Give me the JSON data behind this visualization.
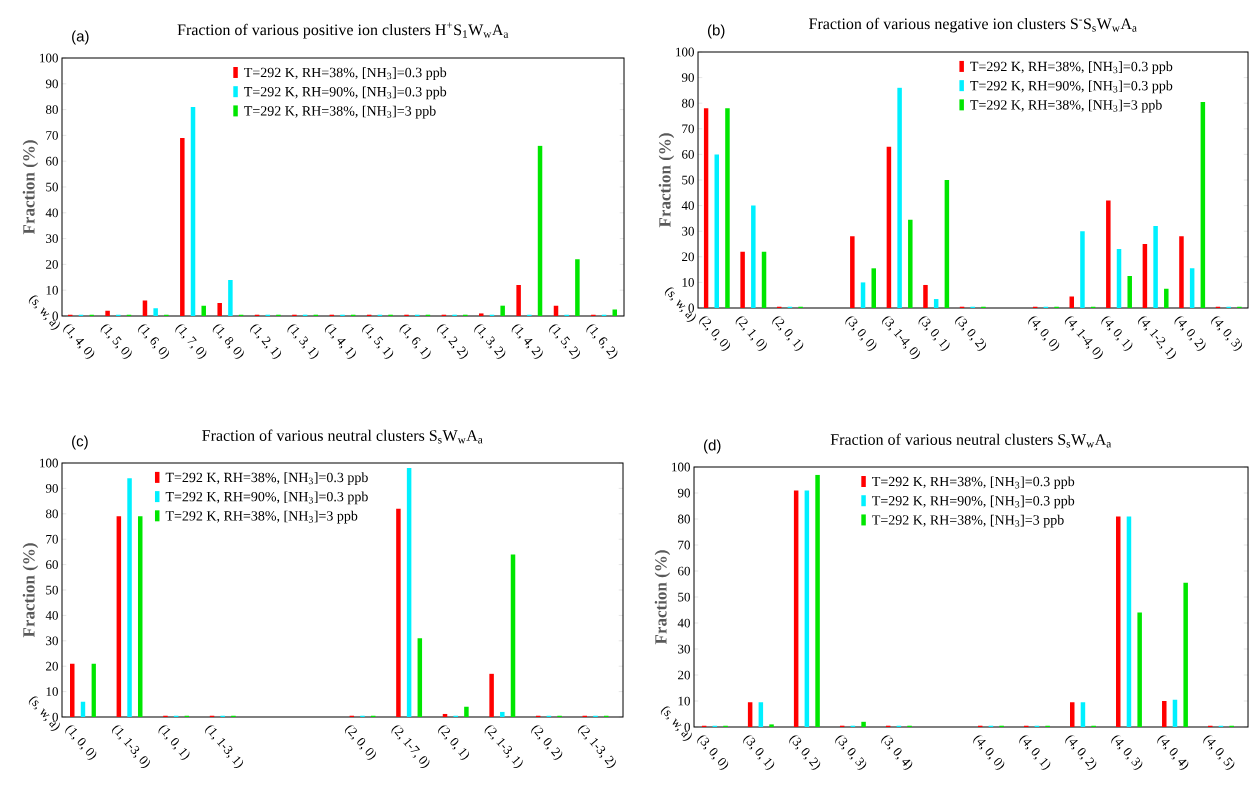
{
  "chart_data": [
    {
      "type": "bar",
      "title": "Fraction of various positive ion clusters H$^{+}$S$_{1}$W$_{w}$A$_{a}$",
      "xlabel": "(s, w, a)",
      "ylabel": "Fraction (%)",
      "annotations": [
        "(a)"
      ],
      "categories": [
        "(1, 4, 0)",
        "(1, 5, 0)",
        "(1, 6, 0)",
        "(1, 7, 0)",
        "(1, 8, 0)",
        "(1, 2, 1)",
        "(1, 3, 1)",
        "(1, 4, 1)",
        "(1, 5, 1)",
        "(1, 6, 1)",
        "(1, 2, 2)",
        "(1, 3, 2)",
        "(1, 4, 2)",
        "(1, 5, 2)",
        "(1, 6, 2)"
      ],
      "series": [
        {
          "name": "T=292 K, RH=38%, [NH$_{3}$]=0.3 ppb",
          "color": "#ff0000",
          "values": [
            0.5,
            2,
            6,
            69,
            5,
            0.5,
            0.5,
            0.5,
            0.5,
            0.5,
            0.5,
            1,
            12,
            4,
            0.5
          ]
        },
        {
          "name": "T=292 K, RH=90%, [NH$_{3}$]=0.3 ppb",
          "color": "#00f0ff",
          "values": [
            0.5,
            0.5,
            3,
            81,
            14,
            0.5,
            0.5,
            0.5,
            0.5,
            0.5,
            0.5,
            0.5,
            0.5,
            0.5,
            0.5
          ]
        },
        {
          "name": "T=292 K, RH=38%, [NH$_{3}$]=3 ppb",
          "color": "#00e600",
          "values": [
            0.5,
            0.5,
            0.5,
            4,
            0.5,
            0.5,
            0.5,
            0.5,
            0.5,
            0.5,
            0.5,
            4,
            66,
            22,
            2.5
          ]
        }
      ],
      "ylim": [
        0,
        100
      ],
      "yticks": [
        0,
        10,
        20,
        30,
        40,
        50,
        60,
        70,
        80,
        90,
        100
      ],
      "legend": "top"
    },
    {
      "type": "bar",
      "title": "Fraction of various negative ion clusters S$^{-}$S$_{s}$W$_{w}$A$_{a}$",
      "xlabel": "(s, w, a)",
      "ylabel": "Fraction (%)",
      "annotations": [
        "(b)"
      ],
      "categories": [
        "(2, 0, 0)",
        "(2, 1, 0)",
        "(2, 0, 1)",
        null,
        "(3, 0, 0)",
        "(3, 1-4, 0)",
        "(3, 0, 1)",
        "(3, 0, 2)",
        null,
        "(4, 0, 0)",
        "(4, 1-4, 0)",
        "(4, 0, 1)",
        "(4, 1-2, 1)",
        "(4, 0, 2)",
        "(4, 0, 3)"
      ],
      "series": [
        {
          "name": "T=292 K, RH=38%, [NH$_{3}$]=0.3 ppb",
          "color": "#ff0000",
          "values": [
            78,
            22,
            0.5,
            null,
            28,
            63,
            9,
            0.5,
            null,
            0.5,
            4.5,
            42,
            25,
            28,
            0.5
          ]
        },
        {
          "name": "T=292 K, RH=90%, [NH$_{3}$]=0.3 ppb",
          "color": "#00f0ff",
          "values": [
            60,
            40,
            0.5,
            null,
            10,
            86,
            3.5,
            0.5,
            null,
            0.5,
            30,
            23,
            32,
            15.5,
            0.5
          ]
        },
        {
          "name": "T=292 K, RH=38%, [NH$_{3}$]=3 ppb",
          "color": "#00e600",
          "values": [
            78,
            22,
            0.5,
            null,
            15.5,
            34.5,
            50,
            0.5,
            null,
            0.5,
            0.5,
            12.5,
            7.5,
            80.5,
            0.5
          ]
        }
      ],
      "ylim": [
        0,
        100
      ],
      "yticks": [
        0,
        10,
        20,
        30,
        40,
        50,
        60,
        70,
        80,
        90,
        100
      ],
      "legend": "top right"
    },
    {
      "type": "bar",
      "title": "Fraction of various neutral clusters S$_{s}$W$_{w}$A$_{a}$",
      "xlabel": "(s, w, a)",
      "ylabel": "Fraction (%)",
      "annotations": [
        "(c)"
      ],
      "categories": [
        "(1, 0, 0)",
        "(1, 1-3, 0)",
        "(1, 0, 1)",
        "(1, 1-3, 1)",
        null,
        null,
        "(2, 0, 0)",
        "(2, 1-7, 0)",
        "(2, 0, 1)",
        "(2, 1-3, 1)",
        "(2, 0, 2)",
        "(2, 1-3, 2)"
      ],
      "series": [
        {
          "name": "T=292 K, RH=38%, [NH$_{3}$]=0.3 ppb",
          "color": "#ff0000",
          "values": [
            21,
            79,
            0.5,
            0.5,
            null,
            null,
            0.5,
            82,
            1.2,
            17,
            0.5,
            0.5
          ]
        },
        {
          "name": "T=292 K, RH=90%, [NH$_{3}$]=0.3 ppb",
          "color": "#00f0ff",
          "values": [
            6,
            94,
            0.5,
            0.5,
            null,
            null,
            0.5,
            98,
            0.5,
            2,
            0.5,
            0.5
          ]
        },
        {
          "name": "T=292 K, RH=38%, [NH$_{3}$]=3 ppb",
          "color": "#00e600",
          "values": [
            21,
            79,
            0.5,
            0.5,
            null,
            null,
            0.5,
            31,
            4,
            64,
            0.5,
            0.5
          ]
        }
      ],
      "ylim": [
        0,
        100
      ],
      "yticks": [
        0,
        10,
        20,
        30,
        40,
        50,
        60,
        70,
        80,
        90,
        100
      ],
      "legend": "top left"
    },
    {
      "type": "bar",
      "title": "Fraction of various neutral clusters S$_{s}$W$_{w}$A$_{a}$",
      "xlabel": "(s, w, a)",
      "ylabel": "Fraction (%)",
      "annotations": [
        "(d)"
      ],
      "categories": [
        "(3, 0, 0)",
        "(3, 0, 1)",
        "(3, 0, 2)",
        "(3, 0, 3)",
        "(3, 0, 4)",
        null,
        "(4, 0, 0)",
        "(4, 0, 1)",
        "(4, 0, 2)",
        "(4, 0, 3)",
        "(4, 0, 4)",
        "(4, 0, 5)"
      ],
      "series": [
        {
          "name": "T=292 K, RH=38%, [NH$_{3}$]=0.3 ppb",
          "color": "#ff0000",
          "values": [
            0.5,
            9.5,
            91,
            0.5,
            0.5,
            null,
            0.5,
            0.5,
            9.5,
            81,
            10,
            0.5
          ]
        },
        {
          "name": "T=292 K, RH=90%, [NH$_{3}$]=0.3 ppb",
          "color": "#00f0ff",
          "values": [
            0.5,
            9.5,
            91,
            0.5,
            0.5,
            null,
            0.5,
            0.5,
            9.5,
            81,
            10.5,
            0.5
          ]
        },
        {
          "name": "T=292 K, RH=38%, [NH$_{3}$]=3 ppb",
          "color": "#00e600",
          "values": [
            0.5,
            1,
            97,
            2,
            0.5,
            null,
            0.5,
            0.5,
            0.5,
            44,
            55.5,
            0.5
          ]
        }
      ],
      "ylim": [
        0,
        100
      ],
      "yticks": [
        0,
        10,
        20,
        30,
        40,
        50,
        60,
        70,
        80,
        90,
        100
      ],
      "legend": "top"
    }
  ]
}
